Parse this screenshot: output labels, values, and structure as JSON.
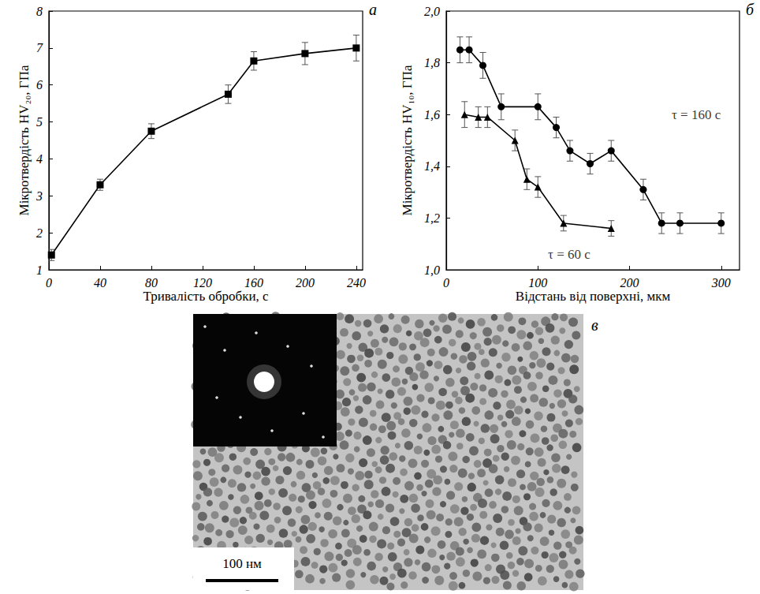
{
  "chart_data": [
    {
      "type": "line",
      "panel": "а",
      "x_label": "Тривалість обробки, с",
      "y_label": "Мікротвердість HV₂₀, ГПа",
      "xlim": [
        0,
        245
      ],
      "xticks": [
        0,
        40,
        80,
        120,
        160,
        200,
        240
      ],
      "ylim": [
        1,
        8
      ],
      "yticks": [
        1,
        2,
        3,
        4,
        5,
        6,
        7,
        8
      ],
      "grid": false,
      "series": [
        {
          "color": "#000000",
          "marker": "square",
          "line_style": "solid",
          "x": [
            2,
            40,
            80,
            140,
            160,
            200,
            240
          ],
          "values": [
            1.4,
            3.3,
            4.75,
            5.75,
            6.65,
            6.85,
            7.0
          ],
          "errors": [
            0.15,
            0.15,
            0.2,
            0.25,
            0.25,
            0.3,
            0.35
          ]
        }
      ]
    },
    {
      "type": "line",
      "panel": "б",
      "x_label": "Відстань від поверхні, мкм",
      "y_label": "Мікротвердість HV₁₀, ГПа",
      "xlim": [
        0,
        320
      ],
      "xticks": [
        0,
        100,
        200,
        300
      ],
      "ylim": [
        1.0,
        2.0
      ],
      "yticks": [
        {
          "value": 1.0,
          "label": "1,0"
        },
        {
          "value": 1.2,
          "label": "1,2"
        },
        {
          "value": 1.4,
          "label": "1,4"
        },
        {
          "value": 1.6,
          "label": "1,6"
        },
        {
          "value": 1.8,
          "label": "1,8"
        },
        {
          "value": 2.0,
          "label": "2,0"
        }
      ],
      "grid": false,
      "series": [
        {
          "color": "#000000",
          "marker": "circle",
          "line_style": "solid",
          "x": [
            15,
            25,
            40,
            60,
            100,
            120,
            135,
            157,
            180,
            215,
            235,
            255,
            300
          ],
          "values": [
            1.85,
            1.85,
            1.79,
            1.63,
            1.63,
            1.55,
            1.46,
            1.41,
            1.46,
            1.31,
            1.18,
            1.18,
            1.18
          ],
          "errors": [
            0.05,
            0.05,
            0.05,
            0.05,
            0.05,
            0.04,
            0.04,
            0.04,
            0.04,
            0.04,
            0.04,
            0.04,
            0.04
          ]
        },
        {
          "color": "#000000",
          "marker": "triangle",
          "line_style": "solid",
          "x": [
            20,
            35,
            45,
            75,
            88,
            100,
            128,
            180
          ],
          "values": [
            1.6,
            1.59,
            1.59,
            1.5,
            1.35,
            1.32,
            1.18,
            1.16
          ],
          "errors": [
            0.05,
            0.04,
            0.04,
            0.04,
            0.04,
            0.04,
            0.03,
            0.03
          ]
        }
      ],
      "annotations": [
        {
          "text": "τ = 160 с",
          "x": 240,
          "y": 1.6
        },
        {
          "text": "τ = 60 с",
          "x": 105,
          "y": 1.06
        }
      ]
    }
  ],
  "image": {
    "panel": "в",
    "scale_bar": "100 нм"
  }
}
